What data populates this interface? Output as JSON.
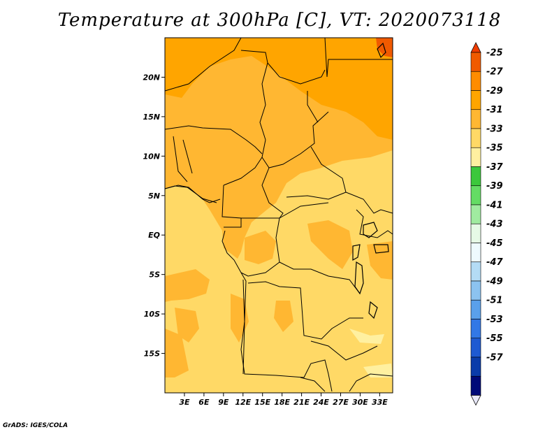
{
  "title": "Temperature at 300hPa [C], VT: 2020073118",
  "credit": "GrADS: IGES/COLA",
  "map": {
    "lon_range": [
      0,
      35
    ],
    "lat_range": [
      -20,
      25
    ],
    "lat_ticks": [
      {
        "value": 20,
        "label": "20N"
      },
      {
        "value": 15,
        "label": "15N"
      },
      {
        "value": 10,
        "label": "10N"
      },
      {
        "value": 5,
        "label": "5N"
      },
      {
        "value": 0,
        "label": "EQ"
      },
      {
        "value": -5,
        "label": "5S"
      },
      {
        "value": -10,
        "label": "10S"
      },
      {
        "value": -15,
        "label": "15S"
      }
    ],
    "lon_ticks": [
      {
        "value": 3,
        "label": "3E"
      },
      {
        "value": 6,
        "label": "6E"
      },
      {
        "value": 9,
        "label": "9E"
      },
      {
        "value": 12,
        "label": "12E"
      },
      {
        "value": 15,
        "label": "15E"
      },
      {
        "value": 18,
        "label": "18E"
      },
      {
        "value": 21,
        "label": "21E"
      },
      {
        "value": 24,
        "label": "24E"
      },
      {
        "value": 27,
        "label": "27E"
      },
      {
        "value": 30,
        "label": "30E"
      },
      {
        "value": 33,
        "label": "33E"
      }
    ]
  },
  "colorbar": {
    "labels": [
      "-25",
      "-27",
      "-29",
      "-31",
      "-33",
      "-35",
      "-37",
      "-39",
      "-41",
      "-43",
      "-45",
      "-47",
      "-49",
      "-51",
      "-53",
      "-55",
      "-57"
    ],
    "colors": [
      "#f05a00",
      "#ff8c00",
      "#ffa500",
      "#ffb732",
      "#ffd966",
      "#fff0a0",
      "#3cc83c",
      "#64dc64",
      "#a0eba0",
      "#e6fae6",
      "#eefafe",
      "#b4dcf5",
      "#8cc3f0",
      "#5aa0eb",
      "#3278e6",
      "#1e5ad2",
      "#0a3caa",
      "#000a78"
    ],
    "end_colors": {
      "top": "#f03c00",
      "bottom": "#e8e8f8"
    }
  }
}
